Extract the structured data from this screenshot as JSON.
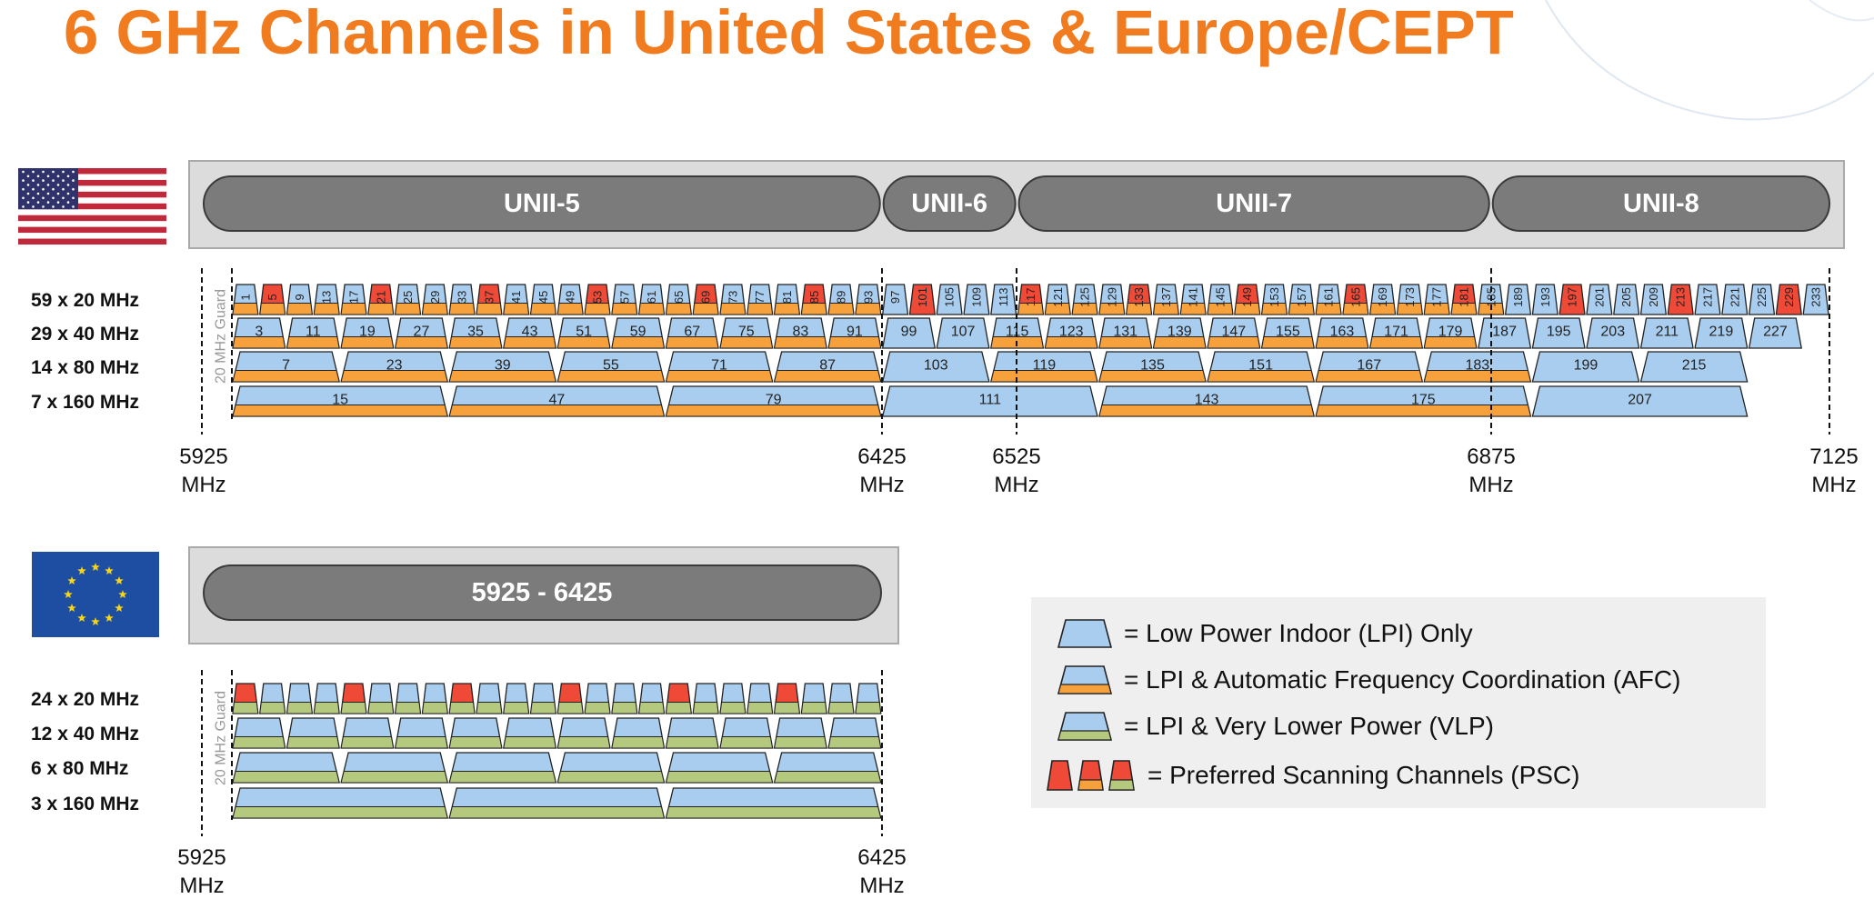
{
  "title": "6 GHz Channels in United States & Europe/CEPT",
  "colors": {
    "title": "#f07c1f",
    "lpi_blue": "#a9cdef",
    "afc_orange": "#f7a13c",
    "vlp_green": "#b5c97e",
    "psc_red": "#ee4a37",
    "band_pill": "#7b7b7b",
    "band_box": "#dcdcdc"
  },
  "us": {
    "flag": "us-flag-icon",
    "bands": [
      {
        "label": "UNII-5",
        "start_mhz": 5925,
        "end_mhz": 6425
      },
      {
        "label": "UNII-6",
        "start_mhz": 6425,
        "end_mhz": 6525
      },
      {
        "label": "UNII-7",
        "start_mhz": 6525,
        "end_mhz": 6875
      },
      {
        "label": "UNII-8",
        "start_mhz": 6875,
        "end_mhz": 7125
      }
    ],
    "rows": [
      {
        "label": "59 x 20 MHz",
        "width_mhz": 20,
        "first_channel": 1,
        "count": 59
      },
      {
        "label": "29 x 40 MHz",
        "width_mhz": 40,
        "first_channel": 3,
        "count": 29
      },
      {
        "label": "14 x 80 MHz",
        "width_mhz": 80,
        "first_channel": 7,
        "count": 14
      },
      {
        "label": "7 x 160 MHz",
        "width_mhz": 160,
        "first_channel": 15,
        "count": 7
      }
    ],
    "afc_ranges_mhz": [
      [
        5925,
        6425
      ],
      [
        6525,
        6875
      ]
    ],
    "psc_channels": [
      5,
      21,
      37,
      53,
      69,
      85,
      101,
      117,
      133,
      149,
      165,
      181,
      197,
      213,
      229
    ],
    "markers": [
      {
        "mhz": "5925",
        "unit": "MHz"
      },
      {
        "mhz": "6425",
        "unit": "MHz"
      },
      {
        "mhz": "6525",
        "unit": "MHz"
      },
      {
        "mhz": "6875",
        "unit": "MHz"
      },
      {
        "mhz": "7125",
        "unit": "MHz"
      }
    ],
    "guard_label": "20 MHz Guard"
  },
  "eu": {
    "flag": "eu-flag-icon",
    "band": {
      "label": "5925 - 6425",
      "start_mhz": 5925,
      "end_mhz": 6425
    },
    "rows": [
      {
        "label": "24 x 20 MHz",
        "width_mhz": 20,
        "count": 24
      },
      {
        "label": "12 x 40 MHz",
        "width_mhz": 40,
        "count": 12
      },
      {
        "label": "6 x 80 MHz",
        "width_mhz": 80,
        "count": 6
      },
      {
        "label": "3 x 160 MHz",
        "width_mhz": 160,
        "count": 3
      }
    ],
    "psc_indices": [
      0,
      4,
      8,
      12,
      16,
      20
    ],
    "markers": [
      {
        "mhz": "5925",
        "unit": "MHz"
      },
      {
        "mhz": "6425",
        "unit": "MHz"
      }
    ],
    "guard_label": "20 MHz Guard"
  },
  "legend": [
    {
      "icon": "lpi-trapezoid-icon",
      "text": "= Low Power Indoor (LPI) Only"
    },
    {
      "icon": "afc-trapezoid-icon",
      "text": "= LPI & Automatic Frequency Coordination (AFC)"
    },
    {
      "icon": "vlp-trapezoid-icon",
      "text": "= LPI & Very Lower Power (VLP)"
    },
    {
      "icon": "psc-trapezoid-icon",
      "text": "= Preferred Scanning Channels (PSC)"
    }
  ]
}
